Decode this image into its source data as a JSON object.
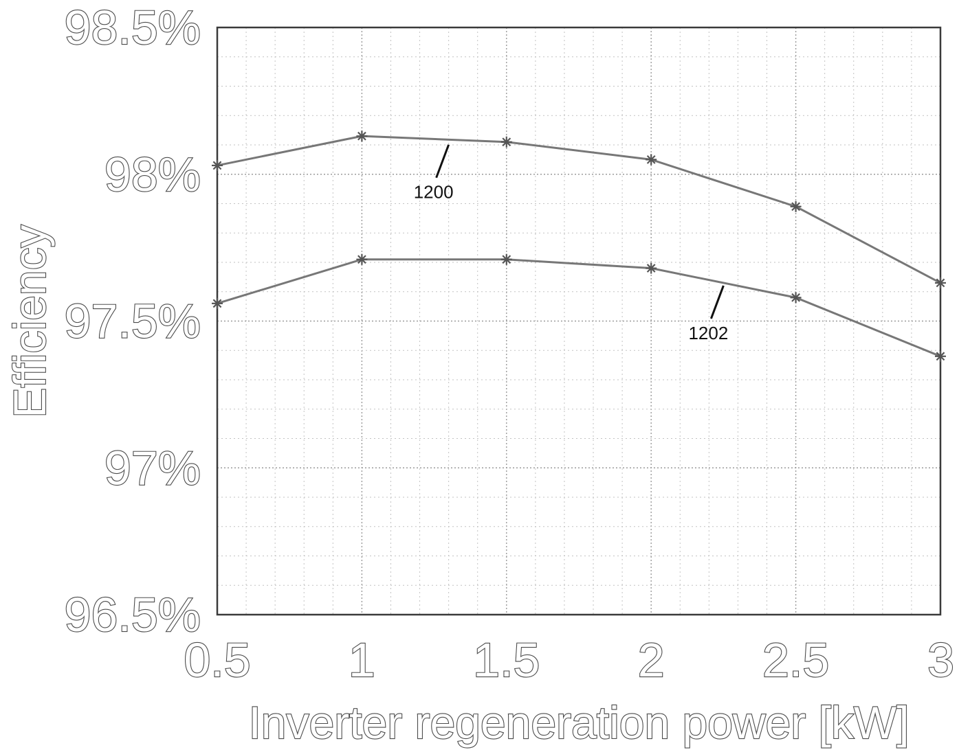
{
  "chart_data": {
    "type": "line",
    "xlabel": "Inverter regeneration power [kW]",
    "ylabel": "Efficiency",
    "xlim": [
      0.5,
      3
    ],
    "ylim": [
      96.5,
      98.5
    ],
    "x_ticks": [
      0.5,
      1,
      1.5,
      2,
      2.5,
      3
    ],
    "x_tick_labels": [
      "0.5",
      "1",
      "1.5",
      "2",
      "2.5",
      "3"
    ],
    "y_ticks": [
      96.5,
      97,
      97.5,
      98,
      98.5
    ],
    "y_tick_labels": [
      "96.5%",
      "97%",
      "97.5%",
      "98%",
      "98.5%"
    ],
    "grid": true,
    "x": [
      0.5,
      1,
      1.5,
      2,
      2.5,
      3
    ],
    "series": [
      {
        "values": [
          98.03,
          98.13,
          98.11,
          98.05,
          97.89,
          97.63
        ]
      },
      {
        "values": [
          97.56,
          97.71,
          97.71,
          97.68,
          97.58,
          97.38
        ]
      }
    ],
    "annotations": [
      {
        "text": "1200",
        "series_index": 0,
        "x": 1.3,
        "y": 98.11
      },
      {
        "text": "1202",
        "series_index": 1,
        "x": 2.25,
        "y": 97.63
      }
    ],
    "colors": {
      "line": "#777777",
      "marker": "#555555",
      "grid": "#9a9a9a",
      "text": "#4a4a4a"
    }
  }
}
